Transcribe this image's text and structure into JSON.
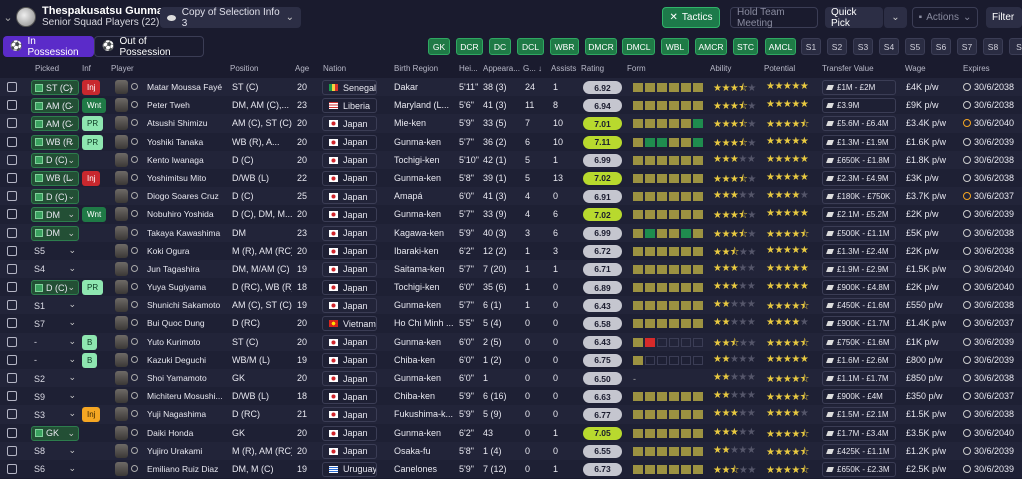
{
  "header": {
    "club": "Thespakusatsu Gunma",
    "sub": "Senior Squad Players (22)",
    "selection": "Copy of Selection Info 3",
    "tactics": "Tactics",
    "hold": "Hold Team Meeting",
    "quick": "Quick Pick",
    "actions": "Actions",
    "filter": "Filter"
  },
  "tabs": {
    "in": "In Possession",
    "out": "Out of Possession"
  },
  "positions": [
    {
      "l": "GK",
      "a": true
    },
    {
      "l": "DCR",
      "a": true
    },
    {
      "l": "DC",
      "a": true
    },
    {
      "l": "DCL",
      "a": true
    },
    {
      "l": "WBR",
      "a": true
    },
    {
      "l": "DMCR",
      "a": true
    },
    {
      "l": "DMCL",
      "a": true
    },
    {
      "l": "WBL",
      "a": true
    },
    {
      "l": "AMCR",
      "a": true
    },
    {
      "l": "STC",
      "a": true
    },
    {
      "l": "AMCL",
      "a": true
    },
    {
      "l": "S1",
      "a": false
    },
    {
      "l": "S2",
      "a": false
    },
    {
      "l": "S3",
      "a": false
    },
    {
      "l": "S4",
      "a": false
    },
    {
      "l": "S5",
      "a": false
    },
    {
      "l": "S6",
      "a": false
    },
    {
      "l": "S7",
      "a": false
    },
    {
      "l": "S8",
      "a": false
    },
    {
      "l": "S",
      "a": false
    }
  ],
  "columns": {
    "picked": "Picked",
    "inf": "Inf",
    "player": "Player",
    "position": "Position",
    "age": "Age",
    "nation": "Nation",
    "birth": "Birth Region",
    "height": "Hei...",
    "apps": "Appeara...",
    "goals": "G...",
    "assists": "Assists",
    "rating": "Rating",
    "form": "Form",
    "ability": "Ability",
    "potential": "Potential",
    "value": "Transfer Value",
    "wage": "Wage",
    "expires": "Expires"
  },
  "players": [
    {
      "pk": "ST (C)",
      "on": true,
      "inf": "Inj",
      "it": "inj",
      "name": "Matar Moussa Fayé",
      "pos": "ST (C)",
      "age": "20",
      "nat": "Senegal",
      "fl": "sn",
      "br": "Dakar",
      "ht": "5'11\"",
      "ap": "38 (3)",
      "g": "24",
      "as": "1",
      "rt": "6.92",
      "hi": false,
      "form": "yyyyyy",
      "ab": 3.5,
      "po": 5,
      "tv": "£1M - £2M",
      "wg": "£4K p/w",
      "ex": "30/6/2038",
      "eo": false
    },
    {
      "pk": "AM (C",
      "on": true,
      "inf": "Wnt",
      "it": "wnt",
      "name": "Peter Tweh",
      "pos": "DM, AM (C),...",
      "age": "23",
      "nat": "Liberia",
      "fl": "lr",
      "br": "Maryland (L...",
      "ht": "5'6\"",
      "ap": "41 (3)",
      "g": "11",
      "as": "8",
      "rt": "6.94",
      "hi": false,
      "form": "yyyyyy",
      "ab": 3.5,
      "po": 5,
      "tv": "£3.9M",
      "wg": "£9K p/w",
      "ex": "30/6/2038",
      "eo": false
    },
    {
      "pk": "AM (C",
      "on": true,
      "inf": "PR",
      "it": "pr",
      "name": "Atsushi Shimizu",
      "pos": "AM (C), ST (C)",
      "age": "20",
      "nat": "Japan",
      "fl": "jp",
      "br": "Mie-ken",
      "ht": "5'9\"",
      "ap": "33 (5)",
      "g": "7",
      "as": "10",
      "rt": "7.01",
      "hi": true,
      "form": "yyyyyg",
      "ab": 3.5,
      "po": 4.5,
      "tv": "£5.6M - £6.4M",
      "wg": "£3.4K p/w",
      "ex": "30/6/2040",
      "eo": true
    },
    {
      "pk": "WB (R",
      "on": true,
      "inf": "PR",
      "it": "pr",
      "name": "Yoshiki Tanaka",
      "pos": "WB (R), A...",
      "age": "20",
      "nat": "Japan",
      "fl": "jp",
      "br": "Gunma-ken",
      "ht": "5'7\"",
      "ap": "36 (2)",
      "g": "6",
      "as": "10",
      "rt": "7.11",
      "hi": true,
      "form": "yggyyg",
      "ab": 3.5,
      "po": 5,
      "tv": "£1.3M - £1.9M",
      "wg": "£1.6K p/w",
      "ex": "30/6/2039",
      "eo": false
    },
    {
      "pk": "D (C)",
      "on": true,
      "inf": "",
      "it": "",
      "name": "Kento Iwanaga",
      "pos": "D (C)",
      "age": "20",
      "nat": "Japan",
      "fl": "jp",
      "br": "Tochigi-ken",
      "ht": "5'10\"",
      "ap": "42 (1)",
      "g": "5",
      "as": "1",
      "rt": "6.99",
      "hi": false,
      "form": "yyyyyy",
      "ab": 3,
      "po": 5,
      "tv": "£650K - £1.8M",
      "wg": "£1.8K p/w",
      "ex": "30/6/2038",
      "eo": false
    },
    {
      "pk": "WB (L",
      "on": true,
      "inf": "Inj",
      "it": "inj",
      "name": "Yoshimitsu Mito",
      "pos": "D/WB (L)",
      "age": "22",
      "nat": "Japan",
      "fl": "jp",
      "br": "Gunma-ken",
      "ht": "5'8\"",
      "ap": "39 (1)",
      "g": "5",
      "as": "13",
      "rt": "7.02",
      "hi": true,
      "form": "yyyyyy",
      "ab": 3.5,
      "po": 5,
      "tv": "£2.3M - £4.9M",
      "wg": "£3K p/w",
      "ex": "30/6/2038",
      "eo": false
    },
    {
      "pk": "D (C)",
      "on": true,
      "inf": "",
      "it": "",
      "name": "Diogo Soares Cruz",
      "pos": "D (C)",
      "age": "25",
      "nat": "Japan",
      "fl": "jp",
      "br": "Amapá",
      "ht": "6'0\"",
      "ap": "41 (3)",
      "g": "4",
      "as": "0",
      "rt": "6.91",
      "hi": false,
      "form": "yyyyyy",
      "ab": 3,
      "po": 4,
      "tv": "£180K - £750K",
      "wg": "£3.7K p/w",
      "ex": "30/6/2037",
      "eo": true
    },
    {
      "pk": "DM",
      "on": true,
      "inf": "Wnt",
      "it": "wnt",
      "name": "Nobuhiro Yoshida",
      "pos": "D (C), DM, M...",
      "age": "20",
      "nat": "Japan",
      "fl": "jp",
      "br": "Gunma-ken",
      "ht": "5'7\"",
      "ap": "33 (9)",
      "g": "4",
      "as": "6",
      "rt": "7.02",
      "hi": true,
      "form": "yyyyyy",
      "ab": 3.5,
      "po": 5,
      "tv": "£2.1M - £5.2M",
      "wg": "£2K p/w",
      "ex": "30/6/2039",
      "eo": false
    },
    {
      "pk": "DM",
      "on": true,
      "inf": "",
      "it": "",
      "name": "Takaya Kawashima",
      "pos": "DM",
      "age": "23",
      "nat": "Japan",
      "fl": "jp",
      "br": "Kagawa-ken",
      "ht": "5'9\"",
      "ap": "40 (3)",
      "g": "3",
      "as": "6",
      "rt": "6.99",
      "hi": false,
      "form": "ygyygy",
      "ab": 3.5,
      "po": 4.5,
      "tv": "£500K - £1.1M",
      "wg": "£5K p/w",
      "ex": "30/6/2038",
      "eo": false
    },
    {
      "pk": "S5",
      "on": false,
      "inf": "",
      "it": "",
      "name": "Koki Ogura",
      "pos": "M (R), AM (RC)",
      "age": "20",
      "nat": "Japan",
      "fl": "jp",
      "br": "Ibaraki-ken",
      "ht": "6'2\"",
      "ap": "12 (2)",
      "g": "1",
      "as": "3",
      "rt": "6.72",
      "hi": false,
      "form": "yyyyyy",
      "ab": 2.5,
      "po": 5,
      "tv": "£1.3M - £2.4M",
      "wg": "£2K p/w",
      "ex": "30/6/2038",
      "eo": false
    },
    {
      "pk": "S4",
      "on": false,
      "inf": "",
      "it": "",
      "name": "Jun Tagashira",
      "pos": "DM, M/AM (C)",
      "age": "19",
      "nat": "Japan",
      "fl": "jp",
      "br": "Saitama-ken",
      "ht": "5'7\"",
      "ap": "7 (20)",
      "g": "1",
      "as": "1",
      "rt": "6.71",
      "hi": false,
      "form": "yyyyyy",
      "ab": 3,
      "po": 5,
      "tv": "£1.9M - £2.9M",
      "wg": "£1.5K p/w",
      "ex": "30/6/2040",
      "eo": false
    },
    {
      "pk": "D (C)",
      "on": true,
      "inf": "PR",
      "it": "pr",
      "name": "Yuya Sugiyama",
      "pos": "D (RC), WB (R)",
      "age": "18",
      "nat": "Japan",
      "fl": "jp",
      "br": "Tochigi-ken",
      "ht": "6'0\"",
      "ap": "35 (6)",
      "g": "1",
      "as": "0",
      "rt": "6.89",
      "hi": false,
      "form": "yyyyyy",
      "ab": 3,
      "po": 5,
      "tv": "£900K - £4.8M",
      "wg": "£2K p/w",
      "ex": "30/6/2040",
      "eo": false
    },
    {
      "pk": "S1",
      "on": false,
      "inf": "",
      "it": "",
      "name": "Shunichi Sakamoto",
      "pos": "AM (C), ST (C)",
      "age": "19",
      "nat": "Japan",
      "fl": "jp",
      "br": "Gunma-ken",
      "ht": "5'7\"",
      "ap": "6 (1)",
      "g": "1",
      "as": "0",
      "rt": "6.43",
      "hi": false,
      "form": "yyyyyy",
      "ab": 2,
      "po": 4.5,
      "tv": "£450K - £1.6M",
      "wg": "£550 p/w",
      "ex": "30/6/2038",
      "eo": false
    },
    {
      "pk": "S7",
      "on": false,
      "inf": "",
      "it": "",
      "name": "Bui Quoc Dung",
      "pos": "D (RC)",
      "age": "20",
      "nat": "Vietnam",
      "fl": "vn",
      "br": "Ho Chi Minh ...",
      "ht": "5'5\"",
      "ap": "5 (4)",
      "g": "0",
      "as": "0",
      "rt": "6.58",
      "hi": false,
      "form": "yyyyyy",
      "ab": 2,
      "po": 4,
      "tv": "£900K - £1.7M",
      "wg": "£1.4K p/w",
      "ex": "30/6/2037",
      "eo": false
    },
    {
      "pk": "-",
      "on": false,
      "inf": "B",
      "it": "b",
      "name": "Yuto Kurimoto",
      "pos": "ST (C)",
      "age": "20",
      "nat": "Japan",
      "fl": "jp",
      "br": "Gunma-ken",
      "ht": "6'0\"",
      "ap": "2 (5)",
      "g": "0",
      "as": "0",
      "rt": "6.43",
      "hi": false,
      "form": "yreeee",
      "ab": 2.5,
      "po": 4.5,
      "tv": "£750K - £1.6M",
      "wg": "£1K p/w",
      "ex": "30/6/2039",
      "eo": false
    },
    {
      "pk": "-",
      "on": false,
      "inf": "B",
      "it": "b",
      "name": "Kazuki Deguchi",
      "pos": "WB/M (L)",
      "age": "19",
      "nat": "Japan",
      "fl": "jp",
      "br": "Chiba-ken",
      "ht": "6'0\"",
      "ap": "1 (2)",
      "g": "0",
      "as": "0",
      "rt": "6.75",
      "hi": false,
      "form": "yeeeee",
      "ab": 2,
      "po": 5,
      "tv": "£1.6M - £2.6M",
      "wg": "£800 p/w",
      "ex": "30/6/2039",
      "eo": false
    },
    {
      "pk": "S2",
      "on": false,
      "inf": "",
      "it": "",
      "name": "Shoi Yamamoto",
      "pos": "GK",
      "age": "20",
      "nat": "Japan",
      "fl": "jp",
      "br": "Gunma-ken",
      "ht": "6'0\"",
      "ap": "1",
      "g": "0",
      "as": "0",
      "rt": "6.50",
      "hi": false,
      "form": "-",
      "ab": 2,
      "po": 4.5,
      "tv": "£1.1M - £1.7M",
      "wg": "£850 p/w",
      "ex": "30/6/2038",
      "eo": false
    },
    {
      "pk": "S9",
      "on": false,
      "inf": "",
      "it": "",
      "name": "Michiteru Mosushi...",
      "pos": "D/WB (L)",
      "age": "18",
      "nat": "Japan",
      "fl": "jp",
      "br": "Chiba-ken",
      "ht": "5'9\"",
      "ap": "6 (16)",
      "g": "0",
      "as": "0",
      "rt": "6.63",
      "hi": false,
      "form": "yyyyyy",
      "ab": 2,
      "po": 4.5,
      "tv": "£900K - £4M",
      "wg": "£350 p/w",
      "ex": "30/6/2037",
      "eo": false
    },
    {
      "pk": "S3",
      "on": false,
      "inf": "Inj",
      "it": "injo",
      "name": "Yuji Nagashima",
      "pos": "D (RC)",
      "age": "21",
      "nat": "Japan",
      "fl": "jp",
      "br": "Fukushima-k...",
      "ht": "5'9\"",
      "ap": "5 (9)",
      "g": "0",
      "as": "0",
      "rt": "6.77",
      "hi": false,
      "form": "yyyyyy",
      "ab": 3,
      "po": 4,
      "tv": "£1.5M - £2.1M",
      "wg": "£1.5K p/w",
      "ex": "30/6/2038",
      "eo": false
    },
    {
      "pk": "GK",
      "on": true,
      "inf": "",
      "it": "",
      "name": "Daiki Honda",
      "pos": "GK",
      "age": "20",
      "nat": "Japan",
      "fl": "jp",
      "br": "Gunma-ken",
      "ht": "6'2\"",
      "ap": "43",
      "g": "0",
      "as": "1",
      "rt": "7.05",
      "hi": true,
      "form": "yyyyyy",
      "ab": 3,
      "po": 4.5,
      "tv": "£1.7M - £3.4M",
      "wg": "£3.5K p/w",
      "ex": "30/6/2040",
      "eo": false
    },
    {
      "pk": "S8",
      "on": false,
      "inf": "",
      "it": "",
      "name": "Yujiro Urakami",
      "pos": "M (R), AM (RC)",
      "age": "20",
      "nat": "Japan",
      "fl": "jp",
      "br": "Osaka-fu",
      "ht": "5'8\"",
      "ap": "1 (4)",
      "g": "0",
      "as": "0",
      "rt": "6.55",
      "hi": false,
      "form": "yyyyyy",
      "ab": 2,
      "po": 4.5,
      "tv": "£425K - £1.1M",
      "wg": "£1.2K p/w",
      "ex": "30/6/2039",
      "eo": false
    },
    {
      "pk": "S6",
      "on": false,
      "inf": "",
      "it": "",
      "name": "Emiliano Ruiz Diaz",
      "pos": "DM, M (C)",
      "age": "19",
      "nat": "Uruguay",
      "fl": "uy",
      "br": "Canelones",
      "ht": "5'9\"",
      "ap": "7 (12)",
      "g": "0",
      "as": "1",
      "rt": "6.73",
      "hi": false,
      "form": "yyyyyy",
      "ab": 2.5,
      "po": 4.5,
      "tv": "£650K - £2.3M",
      "wg": "£2.5K p/w",
      "ex": "30/6/2039",
      "eo": false
    }
  ]
}
